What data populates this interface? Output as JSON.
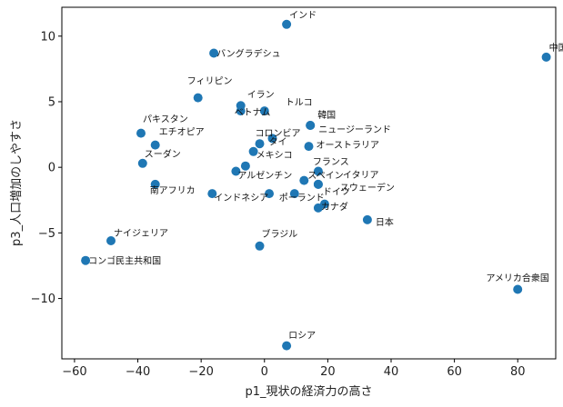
{
  "chart_data": {
    "type": "scatter",
    "xlabel": "p1_現状の経済力の高さ",
    "ylabel": "p3_人口増加のしやすさ",
    "xlim": [
      -64,
      92
    ],
    "ylim": [
      -14.6,
      12.2
    ],
    "xticks": [
      -60,
      -40,
      -20,
      0,
      20,
      40,
      60,
      80
    ],
    "yticks": [
      -10,
      -5,
      0,
      5,
      10
    ],
    "xtick_labels": [
      "−60",
      "−40",
      "−20",
      "0",
      "20",
      "40",
      "60",
      "80"
    ],
    "ytick_labels": [
      "−10",
      "−5",
      "0",
      "5",
      "10"
    ],
    "grid": false,
    "marker_color": "#1f77b4",
    "points": [
      {
        "label": "インド",
        "x": 7,
        "y": 10.9
      },
      {
        "label": "中国",
        "x": 89,
        "y": 8.4
      },
      {
        "label": "バングラデシュ",
        "x": -16,
        "y": 8.7
      },
      {
        "label": "フィリピン",
        "x": -21,
        "y": 5.3
      },
      {
        "label": "イラン",
        "x": -7.5,
        "y": 4.7
      },
      {
        "label": "ベトナム",
        "x": -7.5,
        "y": 4.3
      },
      {
        "label": "トルコ",
        "x": 0,
        "y": 4.3
      },
      {
        "label": "韓国",
        "x": 14.5,
        "y": 3.2
      },
      {
        "label": "ニュージーランド",
        "x": 14.5,
        "y": 3.2
      },
      {
        "label": "パキスタン",
        "x": -39,
        "y": 2.6
      },
      {
        "label": "エチオピア",
        "x": -34.5,
        "y": 1.7
      },
      {
        "label": "コロンビア",
        "x": -1.5,
        "y": 1.8
      },
      {
        "label": "タイ",
        "x": 2.5,
        "y": 2.2
      },
      {
        "label": "オーストラリア",
        "x": 14,
        "y": 1.6
      },
      {
        "label": "メキシコ",
        "x": -3.5,
        "y": 1.2
      },
      {
        "label": "スーダン",
        "x": -38.5,
        "y": 0.3
      },
      {
        "label": "フランス",
        "x": 17,
        "y": -0.3
      },
      {
        "label": "アルゼンチン",
        "x": -9,
        "y": -0.3
      },
      {
        "label": "",
        "x": -6,
        "y": 0.1
      },
      {
        "label": "イタリア",
        "x": 17,
        "y": -1.3
      },
      {
        "label": "スペイン",
        "x": 12.5,
        "y": -1
      },
      {
        "label": "スウェーデン",
        "x": 17,
        "y": -1.3
      },
      {
        "label": "南アフリカ",
        "x": -34.5,
        "y": -1.3
      },
      {
        "label": "インドネシア",
        "x": -16.5,
        "y": -2
      },
      {
        "label": "",
        "x": 1.5,
        "y": -2
      },
      {
        "label": "ポーランド",
        "x": 9.5,
        "y": -2
      },
      {
        "label": "ドイツ",
        "x": 19,
        "y": -2.8
      },
      {
        "label": "カナダ",
        "x": 17,
        "y": -3.1
      },
      {
        "label": "日本",
        "x": 32.5,
        "y": -4
      },
      {
        "label": "ナイジェリア",
        "x": -48.5,
        "y": -5.6
      },
      {
        "label": "ブラジル",
        "x": -1.5,
        "y": -6
      },
      {
        "label": "コンゴ民主共和国",
        "x": -56.5,
        "y": -7.1
      },
      {
        "label": "アメリカ合衆国",
        "x": 80,
        "y": -9.3
      },
      {
        "label": "ロシア",
        "x": 7,
        "y": -13.6
      }
    ]
  }
}
